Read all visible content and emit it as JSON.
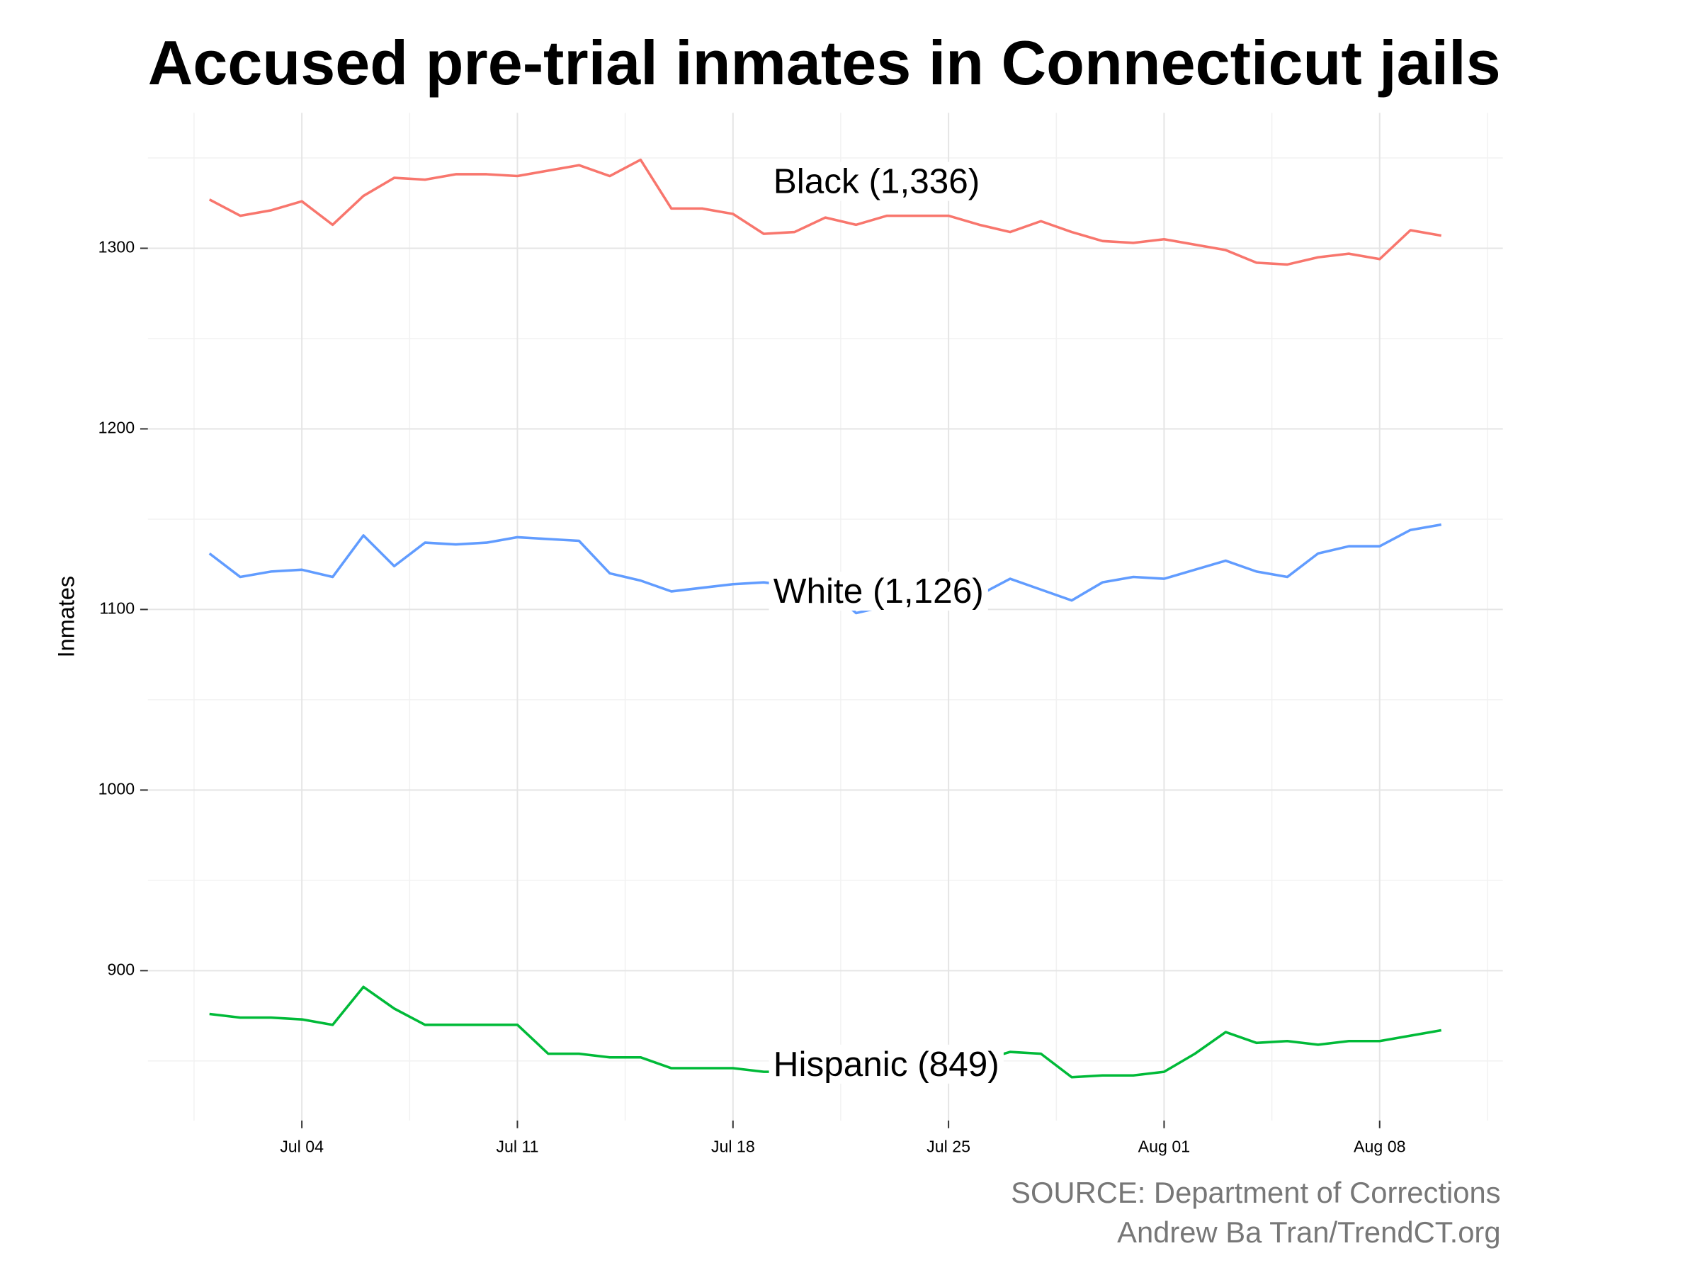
{
  "chart_data": {
    "type": "line",
    "title": "Accused pre-trial inmates in Connecticut jails",
    "y_label": "Inmates",
    "source": [
      "SOURCE: Department of Corrections",
      "Andrew Ba Tran/TrendCT.org"
    ],
    "x": [
      "Jul 01",
      "Jul 02",
      "Jul 03",
      "Jul 04",
      "Jul 05",
      "Jul 06",
      "Jul 07",
      "Jul 08",
      "Jul 09",
      "Jul 10",
      "Jul 11",
      "Jul 12",
      "Jul 13",
      "Jul 14",
      "Jul 15",
      "Jul 16",
      "Jul 17",
      "Jul 18",
      "Jul 19",
      "Jul 20",
      "Jul 21",
      "Jul 22",
      "Jul 23",
      "Jul 24",
      "Jul 25",
      "Jul 26",
      "Jul 27",
      "Jul 28",
      "Jul 29",
      "Jul 30",
      "Jul 31",
      "Aug 01",
      "Aug 02",
      "Aug 03",
      "Aug 04",
      "Aug 05",
      "Aug 06",
      "Aug 07",
      "Aug 08",
      "Aug 09",
      "Aug 10"
    ],
    "xticks": [
      "Jul 04",
      "Jul 11",
      "Jul 18",
      "Jul 25",
      "Aug 01",
      "Aug 08"
    ],
    "ylim": [
      817,
      1375
    ],
    "yticks": [
      900,
      1000,
      1100,
      1200,
      1300
    ],
    "grid": true,
    "series": [
      {
        "label": "Black (1,336)",
        "color": "#f8766d",
        "values": [
          1327,
          1318,
          1321,
          1326,
          1313,
          1329,
          1339,
          1338,
          1341,
          1341,
          1340,
          1343,
          1346,
          1340,
          1349,
          1322,
          1322,
          1319,
          1308,
          1309,
          1317,
          1313,
          1318,
          1318,
          1318,
          1313,
          1309,
          1315,
          1309,
          1304,
          1303,
          1305,
          1302,
          1299,
          1292,
          1291,
          1295,
          1297,
          1294,
          1310,
          1307
        ]
      },
      {
        "label": "White (1,126)",
        "color": "#619cff",
        "values": [
          1131,
          1118,
          1121,
          1122,
          1118,
          1141,
          1124,
          1137,
          1136,
          1137,
          1140,
          1139,
          1138,
          1120,
          1116,
          1110,
          1112,
          1114,
          1115,
          1113,
          1113,
          1098,
          1102,
          1102,
          1106,
          1108,
          1117,
          1111,
          1105,
          1115,
          1118,
          1117,
          1122,
          1127,
          1121,
          1118,
          1131,
          1135,
          1135,
          1144,
          1147
        ]
      },
      {
        "label": "Hispanic (849)",
        "color": "#00ba38",
        "values": [
          876,
          874,
          874,
          873,
          870,
          891,
          879,
          870,
          870,
          870,
          870,
          854,
          854,
          852,
          852,
          846,
          846,
          846,
          844,
          844,
          844,
          845,
          846,
          847,
          848,
          850,
          855,
          854,
          841,
          842,
          842,
          844,
          854,
          866,
          860,
          861,
          859,
          861,
          861,
          864,
          867
        ]
      }
    ]
  }
}
